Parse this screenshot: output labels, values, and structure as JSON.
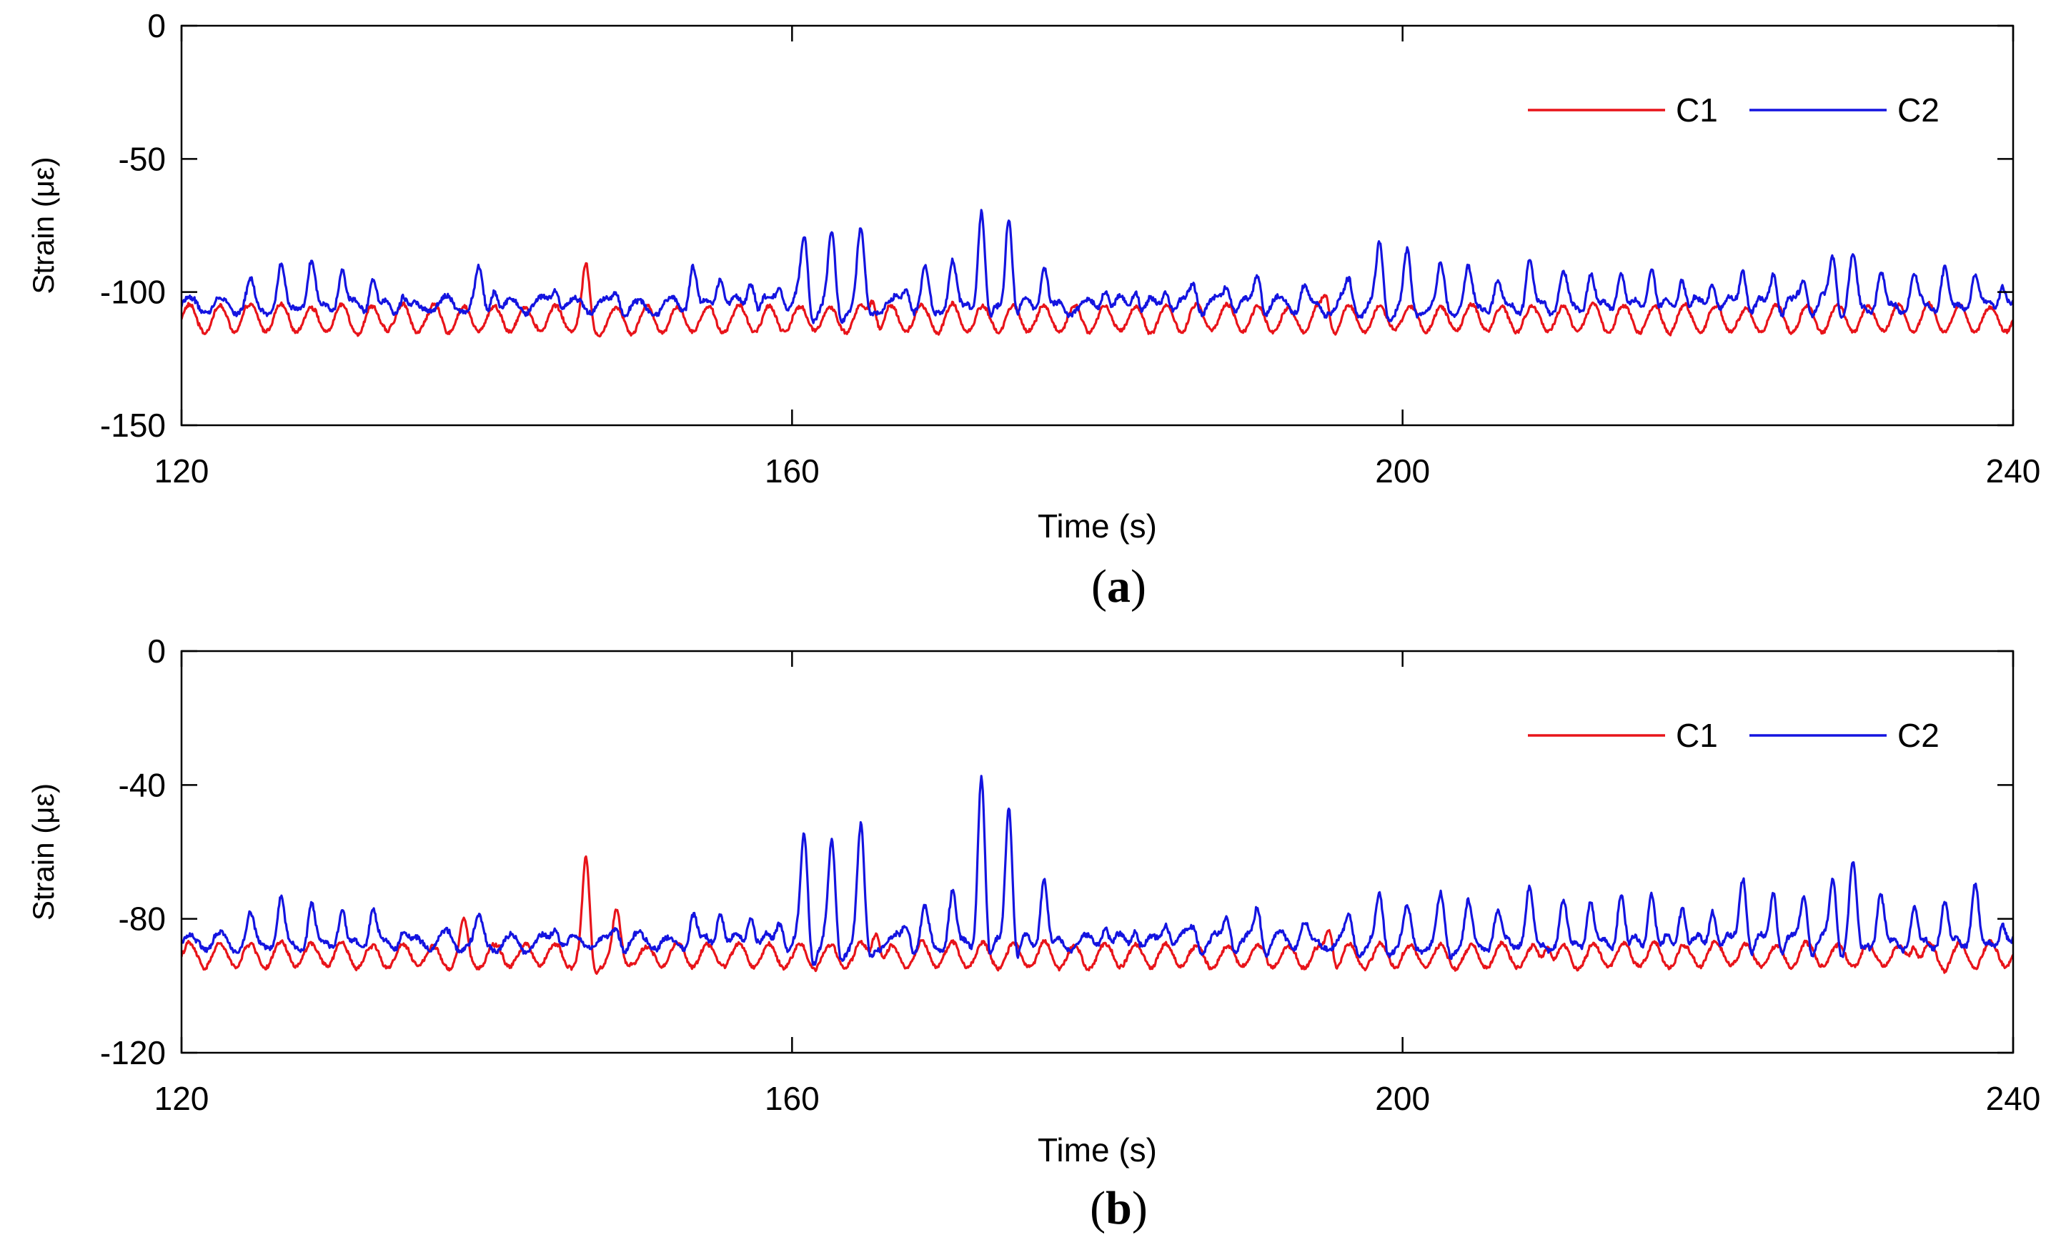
{
  "chart_data": [
    {
      "type": "line",
      "panel": "a",
      "panel_label": "a",
      "xlabel": "Time (s)",
      "ylabel": "Strain (με)",
      "xlim": [
        120,
        240
      ],
      "ylim": [
        -150,
        0
      ],
      "xticks": [
        120,
        160,
        200,
        240
      ],
      "yticks": [
        0,
        -50,
        -100,
        -150
      ],
      "xtick_labels": [
        "120",
        "160",
        "200",
        "240"
      ],
      "ytick_labels": [
        "0",
        "-50",
        "-100",
        "-150"
      ],
      "grid": false,
      "legend": {
        "position": "top-right",
        "orientation": "horizontal",
        "entries": [
          "C1",
          "C2"
        ]
      },
      "series": [
        {
          "name": "C1",
          "color": "#e8141a",
          "base": -110,
          "amp": 5,
          "period": 2.0,
          "noise": 1.2,
          "spikes": [
            [
              146.5,
              16
            ],
            [
              165.3,
              10
            ],
            [
              195,
              8
            ]
          ]
        },
        {
          "name": "C2",
          "color": "#1414e0",
          "base": -105,
          "amp": 3,
          "period": 2.1,
          "noise": 1.6,
          "spikes": [
            [
              124.5,
              8
            ],
            [
              126.5,
              15
            ],
            [
              128.5,
              15
            ],
            [
              130.5,
              12
            ],
            [
              132.5,
              10
            ],
            [
              134.5,
              6
            ],
            [
              139.5,
              12
            ],
            [
              140.5,
              10
            ],
            [
              144.5,
              8
            ],
            [
              148.5,
              6
            ],
            [
              153.5,
              15
            ],
            [
              155.3,
              12
            ],
            [
              157.3,
              11
            ],
            [
              159.2,
              9
            ],
            [
              160.8,
              25
            ],
            [
              162.6,
              25
            ],
            [
              164.5,
              26
            ],
            [
              167.5,
              8
            ],
            [
              168.7,
              13
            ],
            [
              170.5,
              17
            ],
            [
              172.4,
              35
            ],
            [
              174.2,
              36
            ],
            [
              176.5,
              15
            ],
            [
              180.5,
              8
            ],
            [
              182.5,
              8
            ],
            [
              184.5,
              8
            ],
            [
              186.3,
              8
            ],
            [
              188.5,
              8
            ],
            [
              190.5,
              12
            ],
            [
              193.5,
              7
            ],
            [
              196.5,
              8
            ],
            [
              198.5,
              22
            ],
            [
              200.3,
              19
            ],
            [
              202.5,
              14
            ],
            [
              204.3,
              12
            ],
            [
              206.2,
              8
            ],
            [
              208.3,
              15
            ],
            [
              210.5,
              10
            ],
            [
              212.3,
              12
            ],
            [
              214.3,
              14
            ],
            [
              216.3,
              16
            ],
            [
              218.3,
              12
            ],
            [
              220.3,
              12
            ],
            [
              222.3,
              16
            ],
            [
              224.3,
              14
            ],
            [
              226.3,
              12
            ],
            [
              228.2,
              18
            ],
            [
              229.5,
              16
            ],
            [
              231.3,
              13
            ],
            [
              233.5,
              10
            ],
            [
              235.5,
              15
            ],
            [
              237.5,
              12
            ],
            [
              239.3,
              10
            ]
          ]
        }
      ]
    },
    {
      "type": "line",
      "panel": "b",
      "panel_label": "b",
      "xlabel": "Time (s)",
      "ylabel": "Strain (με)",
      "xlim": [
        120,
        240
      ],
      "ylim": [
        -120,
        0
      ],
      "xticks": [
        120,
        160,
        200,
        240
      ],
      "yticks": [
        0,
        -40,
        -80,
        -120
      ],
      "xtick_labels": [
        "120",
        "160",
        "200",
        "240"
      ],
      "ytick_labels": [
        "0",
        "-40",
        "-80",
        "-120"
      ],
      "grid": false,
      "legend": {
        "position": "top-right",
        "orientation": "horizontal",
        "entries": [
          "C1",
          "C2"
        ]
      },
      "series": [
        {
          "name": "C1",
          "color": "#e8141a",
          "base": -91,
          "amp": 3.5,
          "period": 2.0,
          "noise": 1.0,
          "spikes": [
            [
              138.5,
              8
            ],
            [
              146.5,
              26
            ],
            [
              148.5,
              10
            ],
            [
              165.5,
              10
            ],
            [
              195.2,
              10
            ],
            [
              209.5,
              6
            ],
            [
              233.5,
              6
            ]
          ]
        },
        {
          "name": "C2",
          "color": "#1414e0",
          "base": -87,
          "amp": 2.5,
          "period": 2.1,
          "noise": 1.3,
          "spikes": [
            [
              124.5,
              7
            ],
            [
              126.5,
              12
            ],
            [
              128.5,
              11
            ],
            [
              130.5,
              10
            ],
            [
              132.5,
              10
            ],
            [
              134.5,
              5
            ],
            [
              139.5,
              6
            ],
            [
              144.5,
              6
            ],
            [
              148.5,
              5
            ],
            [
              153.5,
              10
            ],
            [
              155.3,
              10
            ],
            [
              157.3,
              10
            ],
            [
              159.2,
              8
            ],
            [
              160.8,
              31
            ],
            [
              162.6,
              27
            ],
            [
              164.5,
              33
            ],
            [
              167.5,
              7
            ],
            [
              168.7,
              9
            ],
            [
              170.5,
              15
            ],
            [
              172.4,
              50
            ],
            [
              174.2,
              42
            ],
            [
              176.5,
              20
            ],
            [
              180.5,
              6
            ],
            [
              182.5,
              6
            ],
            [
              184.5,
              7
            ],
            [
              186.3,
              6
            ],
            [
              188.5,
              9
            ],
            [
              190.5,
              11
            ],
            [
              193.5,
              6
            ],
            [
              196.5,
              7
            ],
            [
              198.5,
              13
            ],
            [
              200.3,
              9
            ],
            [
              202.5,
              13
            ],
            [
              204.3,
              10
            ],
            [
              206.2,
              8
            ],
            [
              208.3,
              16
            ],
            [
              210.5,
              12
            ],
            [
              212.3,
              12
            ],
            [
              214.3,
              16
            ],
            [
              216.3,
              16
            ],
            [
              218.3,
              12
            ],
            [
              220.3,
              12
            ],
            [
              222.3,
              22
            ],
            [
              224.3,
              17
            ],
            [
              226.3,
              16
            ],
            [
              228.2,
              20
            ],
            [
              229.5,
              22
            ],
            [
              231.3,
              14
            ],
            [
              233.5,
              10
            ],
            [
              235.5,
              12
            ],
            [
              237.5,
              17
            ],
            [
              239.3,
              8
            ]
          ]
        }
      ]
    }
  ]
}
